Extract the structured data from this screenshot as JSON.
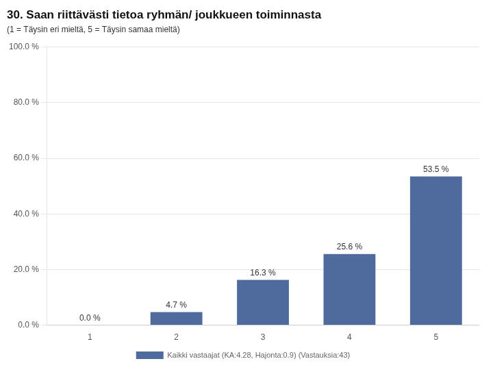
{
  "chart_data": {
    "type": "bar",
    "title": "30. Saan riittävästi tietoa ryhmän/ joukkueen toiminnasta",
    "subtitle": "(1 = Täysin eri mieltä, 5 = Täysin samaa mieltä)",
    "categories": [
      1,
      2,
      3,
      4,
      5
    ],
    "series": [
      {
        "name": "Kaikki vastaajat (KA:4.28, Hajonta:0.9) (Vastauksia:43)",
        "color": "#4f6b9e",
        "values": [
          0.0,
          4.7,
          16.3,
          25.6,
          53.5
        ],
        "value_labels": [
          "0.0 %",
          "4.7 %",
          "16.3 %",
          "25.6 %",
          "53.5 %"
        ]
      }
    ],
    "ylim": [
      0,
      100
    ],
    "yticks": [
      {
        "value": 0,
        "label": "0.0 %"
      },
      {
        "value": 20,
        "label": "20.0 %"
      },
      {
        "value": 40,
        "label": "40.0 %"
      },
      {
        "value": 60,
        "label": "60.0 %"
      },
      {
        "value": 80,
        "label": "80.0 %"
      },
      {
        "value": 100,
        "label": "100.0 %"
      }
    ],
    "grid": true,
    "legend": "bottom",
    "data_labels": true
  }
}
